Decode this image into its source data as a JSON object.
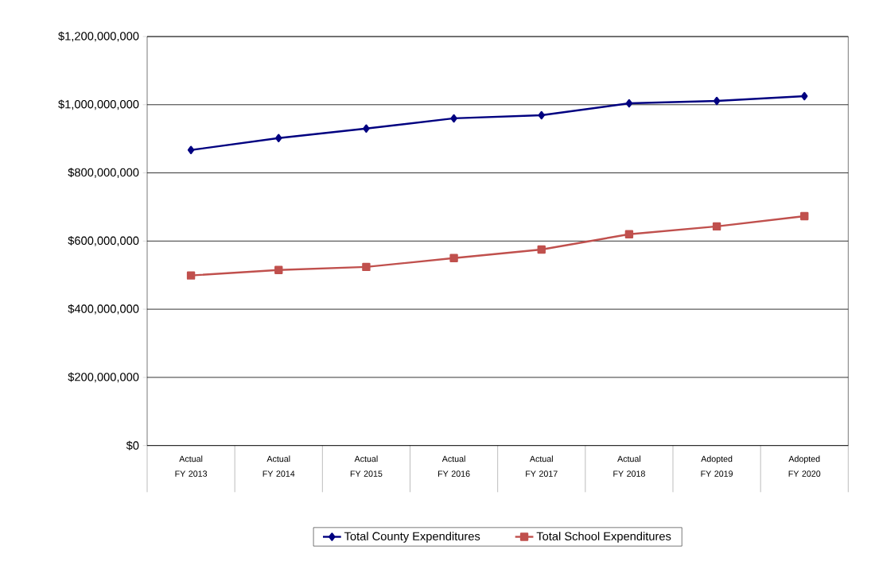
{
  "chart_data": {
    "type": "line",
    "categories": [
      "Actual FY 2013",
      "Actual FY 2014",
      "Actual FY 2015",
      "Actual FY 2016",
      "Actual FY 2017",
      "Actual FY 2018",
      "Adopted FY 2019",
      "Adopted FY 2020"
    ],
    "series": [
      {
        "name": "Total County Expenditures",
        "color": "#000080",
        "marker": "diamond",
        "values": [
          867000000,
          902000000,
          930000000,
          960000000,
          969000000,
          1004000000,
          1011000000,
          1025000000
        ]
      },
      {
        "name": "Total School Expenditures",
        "color": "#c0504d",
        "marker": "square",
        "values": [
          499000000,
          515000000,
          524000000,
          550000000,
          575000000,
          620000000,
          643000000,
          673000000
        ]
      }
    ],
    "ylim": [
      0,
      1200000000
    ],
    "yticks": [
      {
        "value": 0,
        "label": "$0"
      },
      {
        "value": 200000000,
        "label": "$200,000,000"
      },
      {
        "value": 400000000,
        "label": "$400,000,000"
      },
      {
        "value": 600000000,
        "label": "$600,000,000"
      },
      {
        "value": 800000000,
        "label": "$800,000,000"
      },
      {
        "value": 1000000000,
        "label": "$1,000,000,000"
      },
      {
        "value": 1200000000,
        "label": "$1,200,000,000"
      }
    ],
    "grid": "y",
    "legend": "bottom",
    "line_style": "solid"
  }
}
